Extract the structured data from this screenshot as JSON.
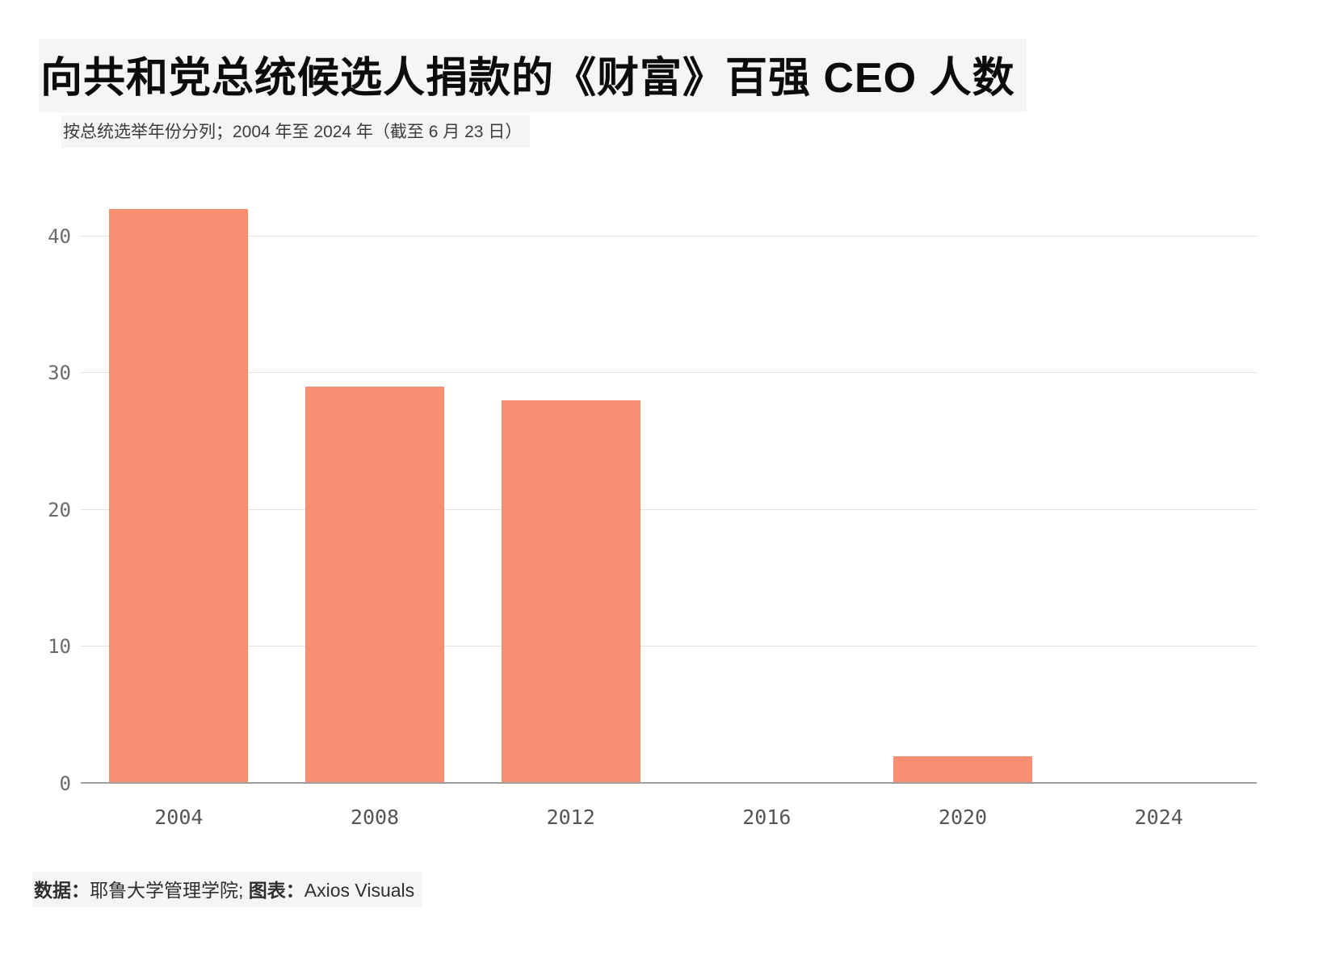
{
  "header": {
    "title": "向共和党总统候选人捐款的《财富》百强 CEO 人数",
    "subtitle": "按总统选举年份分列；2004 年至 2024 年（截至 6 月 23 日）"
  },
  "chart_data": {
    "type": "bar",
    "title": "向共和党总统候选人捐款的《财富》百强 CEO 人数",
    "subtitle": "按总统选举年份分列；2004 年至 2024 年（截至 6 月 23 日）",
    "categories": [
      "2004",
      "2008",
      "2012",
      "2016",
      "2020",
      "2024"
    ],
    "values": [
      42,
      29,
      28,
      0,
      2,
      0
    ],
    "xlabel": "",
    "ylabel": "",
    "ylim": [
      0,
      43
    ],
    "yticks": [
      0,
      10,
      20,
      30,
      40
    ],
    "bar_color": "#f98e72",
    "gridline_color": "#e4e4e4",
    "grid": "horizontal",
    "legend": "none"
  },
  "footer": {
    "source_label": "数据：",
    "source_text": "耶鲁大学管理学院; ",
    "chart_label": "图表：",
    "chart_text": "Axios Visuals"
  }
}
